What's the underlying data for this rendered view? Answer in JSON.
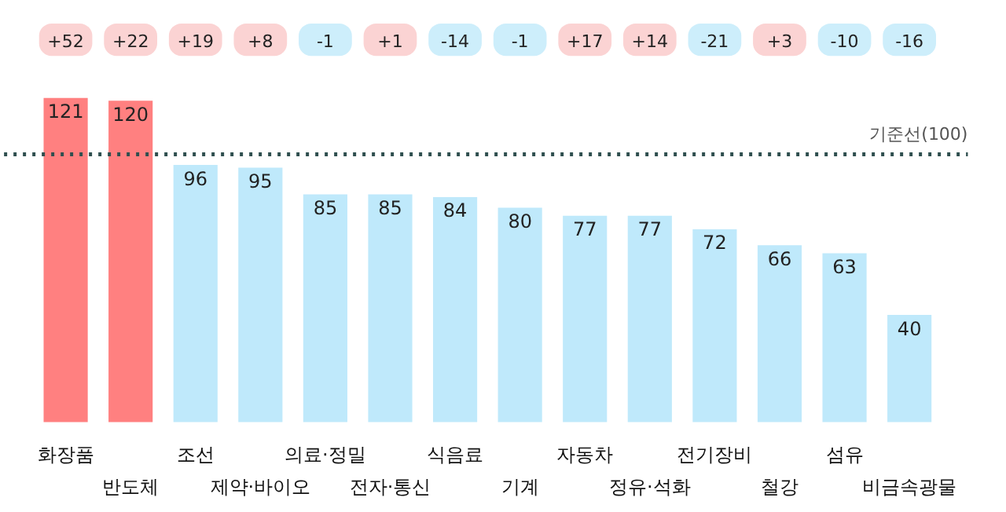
{
  "chart_data": {
    "type": "bar",
    "categories": [
      "화장품",
      "반도체",
      "조선",
      "제약·바이오",
      "의료·정밀",
      "전자·통신",
      "식음료",
      "기계",
      "자동차",
      "정유·석화",
      "전기장비",
      "철강",
      "섬유",
      "비금속광물"
    ],
    "values": [
      121,
      120,
      96,
      95,
      85,
      85,
      84,
      80,
      77,
      77,
      72,
      66,
      63,
      40
    ],
    "colors": [
      "#ff8080",
      "#ff8080",
      "#bfe9fb",
      "#bfe9fb",
      "#bfe9fb",
      "#bfe9fb",
      "#bfe9fb",
      "#bfe9fb",
      "#bfe9fb",
      "#bfe9fb",
      "#bfe9fb",
      "#bfe9fb",
      "#bfe9fb",
      "#bfe9fb"
    ],
    "data_labels": true,
    "ref_lines": [
      {
        "axis": "y",
        "value": 100,
        "label": "기준선(100)",
        "color": "#2f4f4f",
        "line_style": "dotted"
      }
    ],
    "annotations": [
      "+52",
      "+22",
      "+19",
      "+8",
      "-1",
      "+1",
      "-14",
      "-1",
      "+17",
      "+14",
      "-21",
      "+3",
      "-10",
      "-16"
    ]
  }
}
